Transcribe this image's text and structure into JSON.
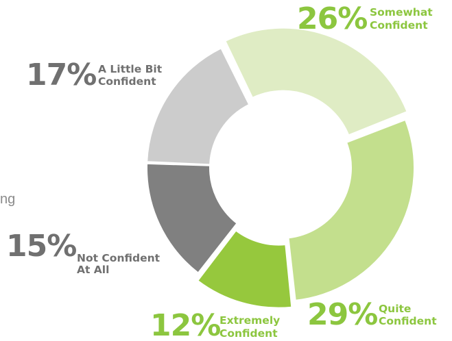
{
  "chart_data": {
    "type": "pie",
    "style": "donut",
    "slices": [
      {
        "key": "somewhat",
        "percent_label": "26%",
        "value": 26,
        "line1": "Somewhat",
        "line2": "Confident",
        "color": "#dfecc4",
        "text_color": "#8cc63f"
      },
      {
        "key": "quite",
        "percent_label": "29%",
        "value": 29,
        "line1": "Quite",
        "line2": "Confident",
        "color": "#c3df8d",
        "text_color": "#8cc63f"
      },
      {
        "key": "extremely",
        "percent_label": "12%",
        "value": 12,
        "line1": "Extremely",
        "line2": "Confident",
        "color": "#96c83d",
        "text_color": "#8cc63f"
      },
      {
        "key": "not",
        "percent_label": "15%",
        "value": 15,
        "line1": "Not Confident",
        "line2": "At All",
        "color": "#808080",
        "text_color": "#707070"
      },
      {
        "key": "little",
        "percent_label": "17%",
        "value": 17,
        "line1": "A Little Bit",
        "line2": "Confident",
        "color": "#cccccc",
        "text_color": "#707070"
      }
    ]
  },
  "fragment_text": "ng"
}
